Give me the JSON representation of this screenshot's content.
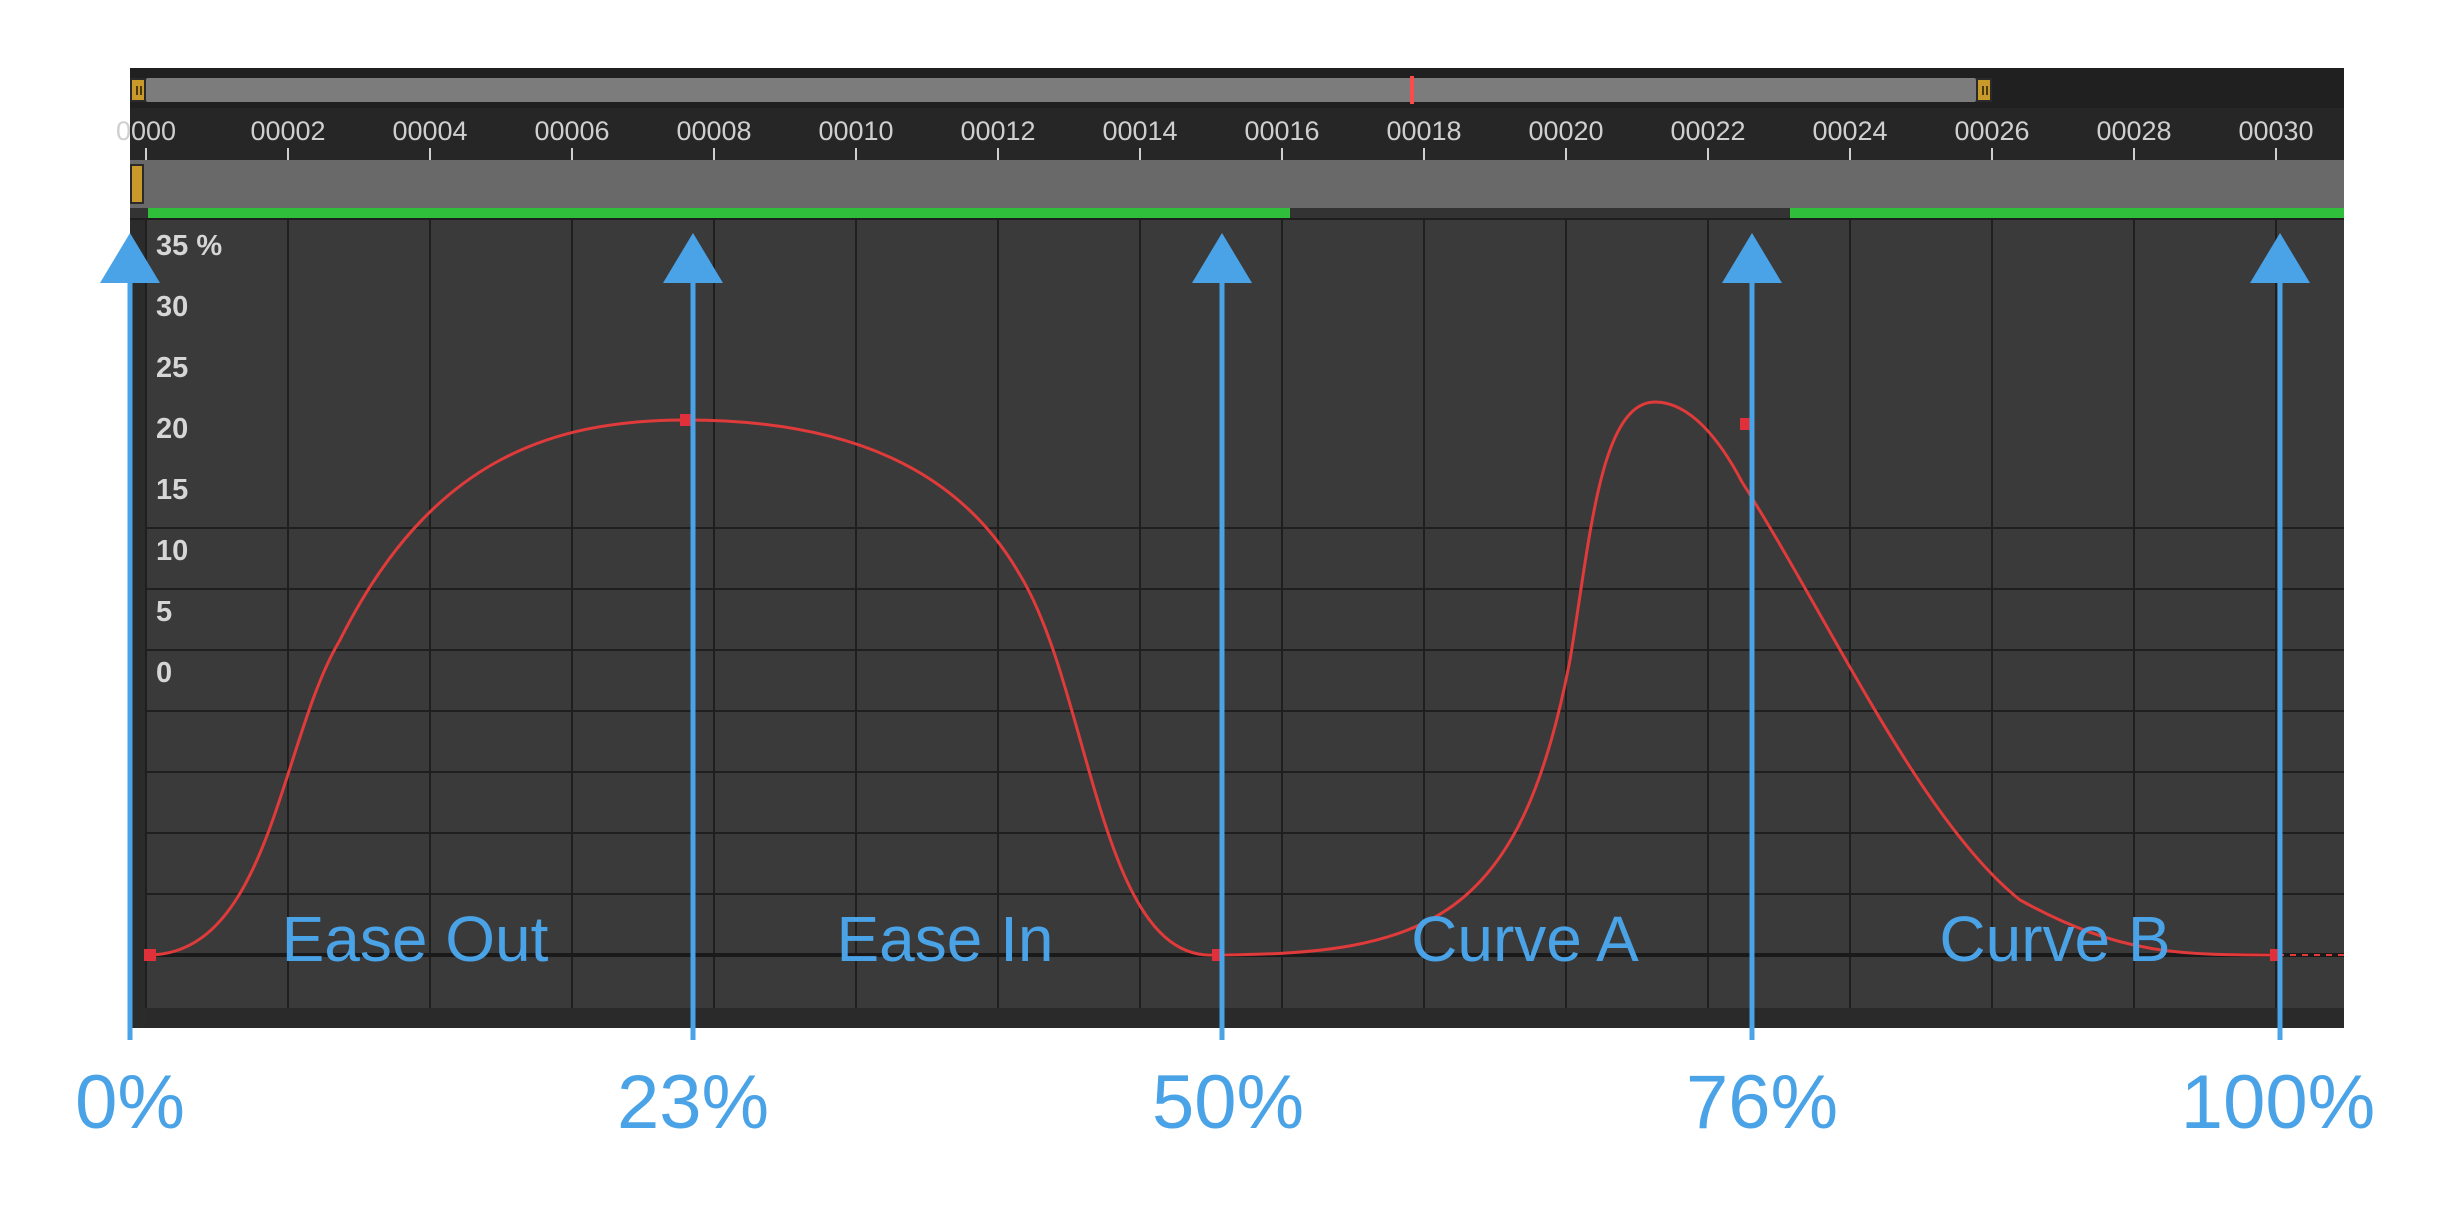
{
  "timeline": {
    "frame_labels": [
      "0000",
      "00002",
      "00004",
      "00006",
      "00008",
      "00010",
      "00012",
      "00014",
      "00016",
      "00018",
      "00020",
      "00022",
      "00024",
      "00026",
      "00028",
      "00030"
    ]
  },
  "graph": {
    "y_labels": [
      "35 %",
      "30",
      "25",
      "20",
      "15",
      "10",
      "5",
      "0"
    ],
    "curve_color": "#e03a3a",
    "keyframe_color": "#e0303a",
    "grid_color": "#1f1f1f",
    "background_color": "#3a3a3a"
  },
  "segments": [
    "Ease Out",
    "Ease In",
    "Curve A",
    "Curve B"
  ],
  "markers": [
    "0%",
    "23%",
    "50%",
    "76%",
    "100%"
  ],
  "colors": {
    "accent": "#4aa3e6",
    "work_area_bar": "#2fbf3a",
    "playhead": "#ff4a4a",
    "handle": "#c99a2a"
  }
}
